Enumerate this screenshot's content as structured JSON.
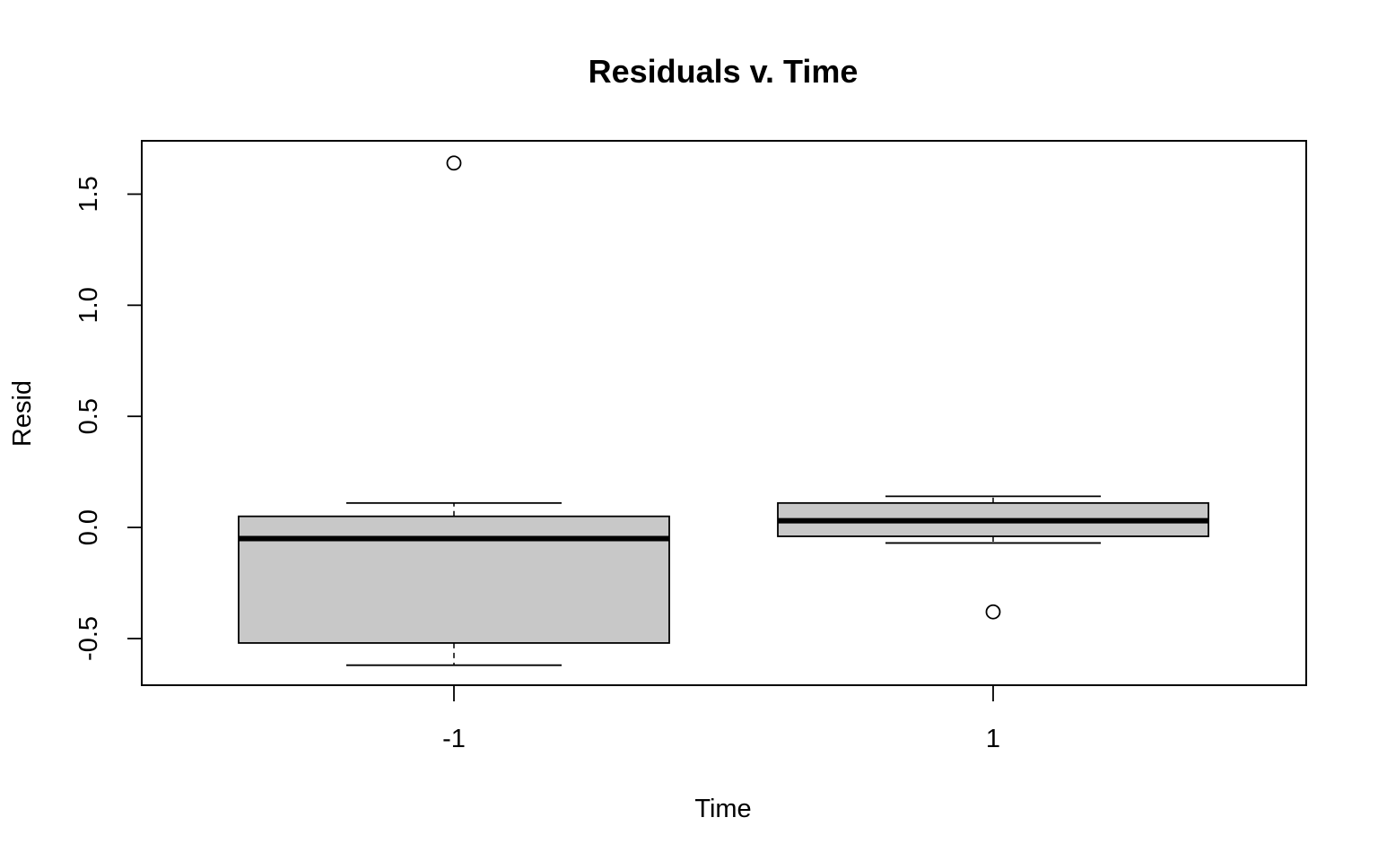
{
  "chart_data": {
    "type": "boxplot",
    "title": "Residuals v. Time",
    "xlabel": "Time",
    "ylabel": "Resid",
    "ylim": [
      -0.71,
      1.74
    ],
    "yticks": [
      -0.5,
      0.0,
      0.5,
      1.0,
      1.5
    ],
    "ytick_labels": [
      "-0.5",
      "0.0",
      "0.5",
      "1.0",
      "1.5"
    ],
    "grid": false,
    "box_fill": "#c8c8c8",
    "categories": [
      "-1",
      "1"
    ],
    "boxes": [
      {
        "category": "-1",
        "whisker_low": -0.62,
        "q1": -0.52,
        "median": -0.05,
        "q3": 0.05,
        "whisker_high": 0.11,
        "outliers": [
          1.64
        ]
      },
      {
        "category": "1",
        "whisker_low": -0.07,
        "q1": -0.04,
        "median": 0.03,
        "q3": 0.11,
        "whisker_high": 0.14,
        "outliers": [
          -0.38
        ]
      }
    ]
  }
}
